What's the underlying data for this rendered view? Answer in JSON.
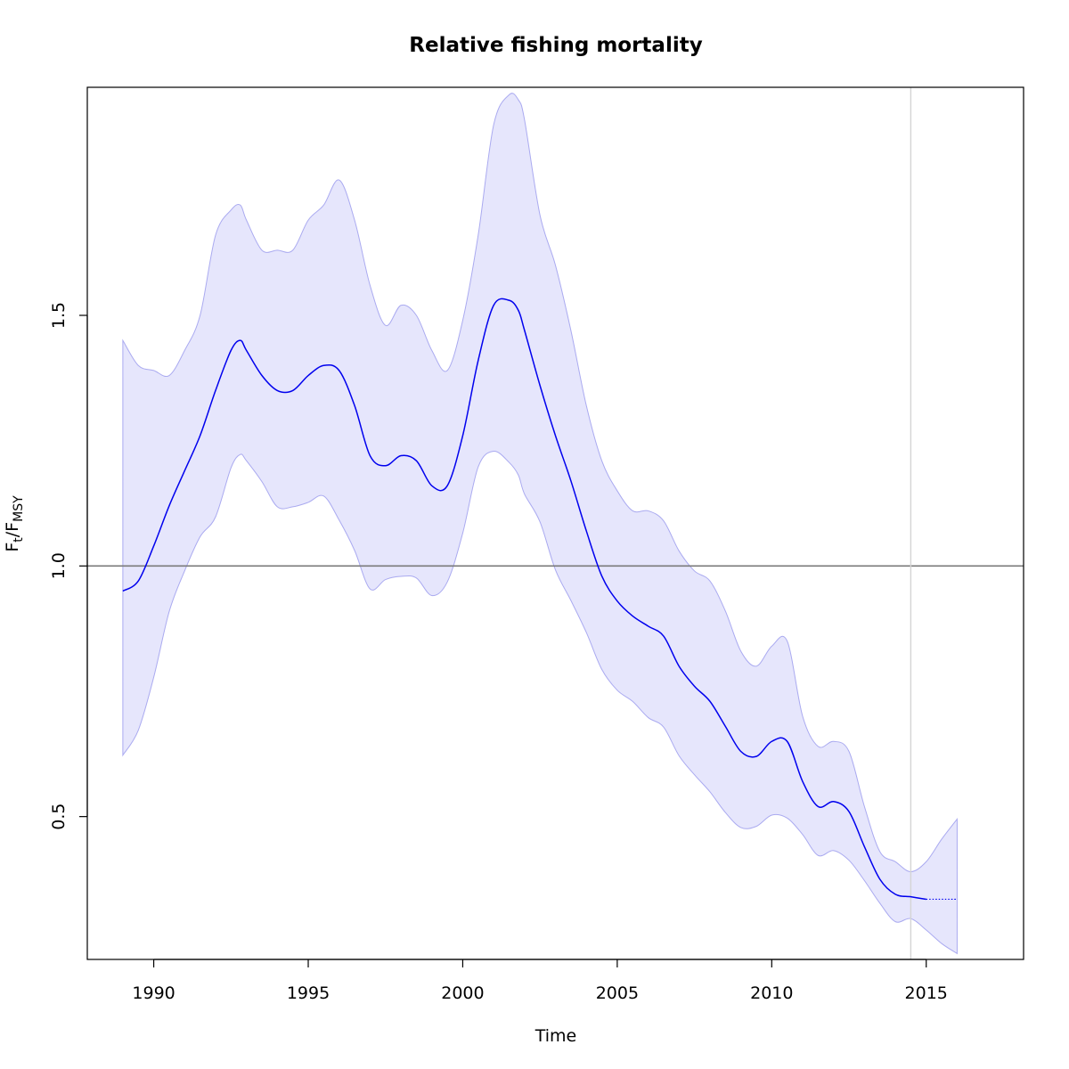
{
  "chart_data": {
    "type": "line",
    "title": "Relative fishing mortality",
    "xlabel": "Time",
    "ylabel": {
      "main": "F",
      "sub1": "t",
      "sep": "/F",
      "sub2": "MSY"
    },
    "xlim": [
      1987.85,
      2018.15
    ],
    "ylim": [
      0.215,
      1.955
    ],
    "x_ticks": [
      1990,
      1995,
      2000,
      2005,
      2010,
      2015
    ],
    "x_tick_labels": [
      "1990",
      "1995",
      "2000",
      "2005",
      "2010",
      "2015"
    ],
    "y_ticks": [
      0.5,
      1.0,
      1.5
    ],
    "y_tick_labels": [
      "0.5",
      "1.0",
      "1.5"
    ],
    "reference_line_y": 1.0,
    "vertical_line_x": 2014.5,
    "colors": {
      "line": "#0000ee",
      "band_fill": "#e6e6fc",
      "band_edge": "#aaaaf0",
      "reference_line": "#7a7a7a",
      "vertical_line": "#d4d4d4"
    },
    "series": [
      {
        "name": "",
        "role": "estimate",
        "x": [
          1989.0,
          1989.5,
          1990.0,
          1990.5,
          1991.0,
          1991.5,
          1992.0,
          1992.5,
          1992.8,
          1993.0,
          1993.5,
          1994.0,
          1994.5,
          1995.0,
          1995.5,
          1996.0,
          1996.5,
          1997.0,
          1997.5,
          1998.0,
          1998.5,
          1999.0,
          1999.5,
          2000.0,
          2000.5,
          2001.0,
          2001.5,
          2001.8,
          2002.0,
          2002.5,
          2003.0,
          2003.5,
          2004.0,
          2004.5,
          2005.0,
          2005.5,
          2006.0,
          2006.5,
          2007.0,
          2007.5,
          2008.0,
          2008.5,
          2009.0,
          2009.5,
          2010.0,
          2010.5,
          2011.0,
          2011.5,
          2012.0,
          2012.5,
          2013.0,
          2013.5,
          2014.0,
          2014.5,
          2015.0
        ],
        "y": [
          0.95,
          0.97,
          1.04,
          1.12,
          1.19,
          1.26,
          1.35,
          1.43,
          1.45,
          1.43,
          1.38,
          1.35,
          1.35,
          1.38,
          1.4,
          1.39,
          1.32,
          1.22,
          1.2,
          1.22,
          1.21,
          1.16,
          1.16,
          1.26,
          1.41,
          1.52,
          1.53,
          1.51,
          1.47,
          1.36,
          1.26,
          1.17,
          1.07,
          0.98,
          0.93,
          0.9,
          0.88,
          0.86,
          0.8,
          0.76,
          0.73,
          0.68,
          0.63,
          0.62,
          0.65,
          0.65,
          0.57,
          0.52,
          0.53,
          0.51,
          0.44,
          0.375,
          0.345,
          0.34,
          0.335
        ]
      },
      {
        "name": "",
        "role": "prediction",
        "x": [
          2015.0,
          2016.0
        ],
        "y": [
          0.335,
          0.335
        ]
      }
    ],
    "band": {
      "x": [
        1989.0,
        1989.5,
        1990.0,
        1990.5,
        1991.0,
        1991.5,
        1992.0,
        1992.5,
        1992.8,
        1993.0,
        1993.5,
        1994.0,
        1994.5,
        1995.0,
        1995.5,
        1996.0,
        1996.5,
        1997.0,
        1997.5,
        1998.0,
        1998.5,
        1999.0,
        1999.5,
        2000.0,
        2000.5,
        2001.0,
        2001.5,
        2001.8,
        2002.0,
        2002.5,
        2003.0,
        2003.5,
        2004.0,
        2004.5,
        2005.0,
        2005.5,
        2006.0,
        2006.5,
        2007.0,
        2007.5,
        2008.0,
        2008.5,
        2009.0,
        2009.5,
        2010.0,
        2010.5,
        2011.0,
        2011.5,
        2012.0,
        2012.5,
        2013.0,
        2013.5,
        2014.0,
        2014.5,
        2015.0,
        2015.5,
        2016.0
      ],
      "upper": [
        1.45,
        1.4,
        1.39,
        1.38,
        1.43,
        1.5,
        1.66,
        1.71,
        1.72,
        1.69,
        1.63,
        1.63,
        1.63,
        1.69,
        1.72,
        1.77,
        1.69,
        1.56,
        1.48,
        1.52,
        1.5,
        1.43,
        1.39,
        1.49,
        1.66,
        1.88,
        1.94,
        1.93,
        1.89,
        1.7,
        1.6,
        1.47,
        1.32,
        1.21,
        1.15,
        1.11,
        1.11,
        1.09,
        1.03,
        0.99,
        0.97,
        0.91,
        0.83,
        0.8,
        0.84,
        0.85,
        0.7,
        0.64,
        0.65,
        0.63,
        0.52,
        0.43,
        0.41,
        0.39,
        0.41,
        0.455,
        0.495
      ]
    }
  }
}
